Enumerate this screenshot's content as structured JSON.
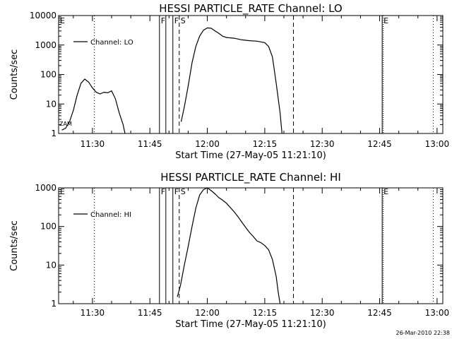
{
  "chart_data": [
    {
      "type": "line",
      "title": "HESSI PARTICLE_RATE Channel: LO",
      "xlabel": "Start Time (27-May-05 11:21:10)",
      "ylabel": "Counts/sec",
      "yscale": "log",
      "ylim": [
        1,
        10000
      ],
      "xlim": [
        "11:21:10",
        "13:01:30"
      ],
      "y_ticks": [
        "1",
        "10",
        "100",
        "1000",
        "10000"
      ],
      "x_ticks": [
        "11:30",
        "11:45",
        "12:00",
        "12:15",
        "12:30",
        "12:45",
        "13:00"
      ],
      "legend_position": "top-left",
      "series": [
        {
          "name": "Channel: LO",
          "points": [
            [
              "11:22:00",
              1.3
            ],
            [
              "11:23:00",
              1.5
            ],
            [
              "11:24:00",
              2.5
            ],
            [
              "11:25:00",
              6
            ],
            [
              "11:26:00",
              20
            ],
            [
              "11:27:00",
              50
            ],
            [
              "11:28:00",
              70
            ],
            [
              "11:29:00",
              55
            ],
            [
              "11:30:00",
              35
            ],
            [
              "11:31:00",
              25
            ],
            [
              "11:32:00",
              22
            ],
            [
              "11:33:00",
              25
            ],
            [
              "11:34:00",
              24
            ],
            [
              "11:35:00",
              28
            ],
            [
              "11:36:00",
              15
            ],
            [
              "11:37:00",
              5
            ],
            [
              "11:38:00",
              2
            ],
            [
              "11:38:30",
              1
            ]
          ]
        },
        {
          "name": "",
          "points": [
            [
              "11:53:10",
              2.5
            ],
            [
              "11:54:00",
              8
            ],
            [
              "11:55:00",
              40
            ],
            [
              "11:56:00",
              250
            ],
            [
              "11:57:00",
              900
            ],
            [
              "11:58:00",
              2000
            ],
            [
              "11:59:00",
              3200
            ],
            [
              "12:00:00",
              3800
            ],
            [
              "12:01:00",
              3700
            ],
            [
              "12:02:00",
              3000
            ],
            [
              "12:03:00",
              2500
            ],
            [
              "12:04:00",
              2000
            ],
            [
              "12:05:00",
              1800
            ],
            [
              "12:07:00",
              1700
            ],
            [
              "12:09:00",
              1500
            ],
            [
              "12:11:00",
              1400
            ],
            [
              "12:13:00",
              1350
            ],
            [
              "12:15:00",
              1200
            ],
            [
              "12:16:00",
              900
            ],
            [
              "12:17:00",
              400
            ],
            [
              "12:18:00",
              50
            ],
            [
              "12:19:00",
              5
            ],
            [
              "12:19:30",
              1
            ]
          ]
        }
      ],
      "event_lines": {
        "flare_start_F": [
          "11:47:30",
          "11:49:10",
          "11:51:00"
        ],
        "saa_S_dashed": [
          "11:52:40",
          "12:22:30"
        ],
        "eclipse_E": [
          "12:45:40"
        ],
        "dotted": [
          "11:30:30",
          "12:59:00"
        ]
      },
      "flag_labels": [
        {
          "text": "F",
          "at": "11:47:30"
        },
        {
          "text": "F",
          "at": "11:51:00"
        },
        {
          "text": "S",
          "at": "11:52:40"
        },
        {
          "text": "E",
          "at": "12:45:40"
        },
        {
          "text": "E",
          "at": "11:21:10"
        }
      ],
      "corner_marker": "ZAM"
    },
    {
      "type": "line",
      "title": "HESSI PARTICLE_RATE Channel: HI",
      "xlabel": "Start Time (27-May-05 11:21:10)",
      "ylabel": "Counts/sec",
      "yscale": "log",
      "ylim": [
        1,
        1000
      ],
      "xlim": [
        "11:21:10",
        "13:01:30"
      ],
      "y_ticks": [
        "1",
        "10",
        "100",
        "1000"
      ],
      "x_ticks": [
        "11:30",
        "11:45",
        "12:00",
        "12:15",
        "12:30",
        "12:45",
        "13:00"
      ],
      "legend_position": "top-left",
      "series": [
        {
          "name": "Channel: HI",
          "points": [
            [
              "11:52:10",
              1.5
            ],
            [
              "11:53:00",
              3
            ],
            [
              "11:54:00",
              10
            ],
            [
              "11:55:00",
              30
            ],
            [
              "11:56:00",
              100
            ],
            [
              "11:57:00",
              300
            ],
            [
              "11:58:00",
              650
            ],
            [
              "11:59:00",
              900
            ],
            [
              "12:00:00",
              1000
            ],
            [
              "12:01:00",
              850
            ],
            [
              "12:02:00",
              700
            ],
            [
              "12:03:00",
              560
            ],
            [
              "12:04:00",
              480
            ],
            [
              "12:05:00",
              400
            ],
            [
              "12:06:00",
              310
            ],
            [
              "12:07:00",
              240
            ],
            [
              "12:08:00",
              180
            ],
            [
              "12:09:00",
              130
            ],
            [
              "12:10:00",
              95
            ],
            [
              "12:11:00",
              70
            ],
            [
              "12:12:00",
              55
            ],
            [
              "12:13:00",
              42
            ],
            [
              "12:14:00",
              38
            ],
            [
              "12:15:00",
              32
            ],
            [
              "12:16:00",
              25
            ],
            [
              "12:17:00",
              14
            ],
            [
              "12:18:00",
              5
            ],
            [
              "12:18:30",
              2
            ],
            [
              "12:19:00",
              1
            ]
          ]
        }
      ],
      "event_lines": {
        "flare_start_F": [
          "11:47:30",
          "11:49:10",
          "11:51:00"
        ],
        "saa_S_dashed": [
          "11:52:40",
          "12:22:30"
        ],
        "eclipse_E": [
          "12:45:40"
        ],
        "dotted": [
          "11:30:30",
          "12:59:00"
        ]
      },
      "flag_labels": [
        {
          "text": "F",
          "at": "11:47:30"
        },
        {
          "text": "F",
          "at": "11:51:00"
        },
        {
          "text": "S",
          "at": "11:52:40"
        },
        {
          "text": "E",
          "at": "12:45:40"
        },
        {
          "text": "E",
          "at": "11:21:10"
        }
      ]
    }
  ],
  "timestamp": "26-Mar-2010 22:38"
}
